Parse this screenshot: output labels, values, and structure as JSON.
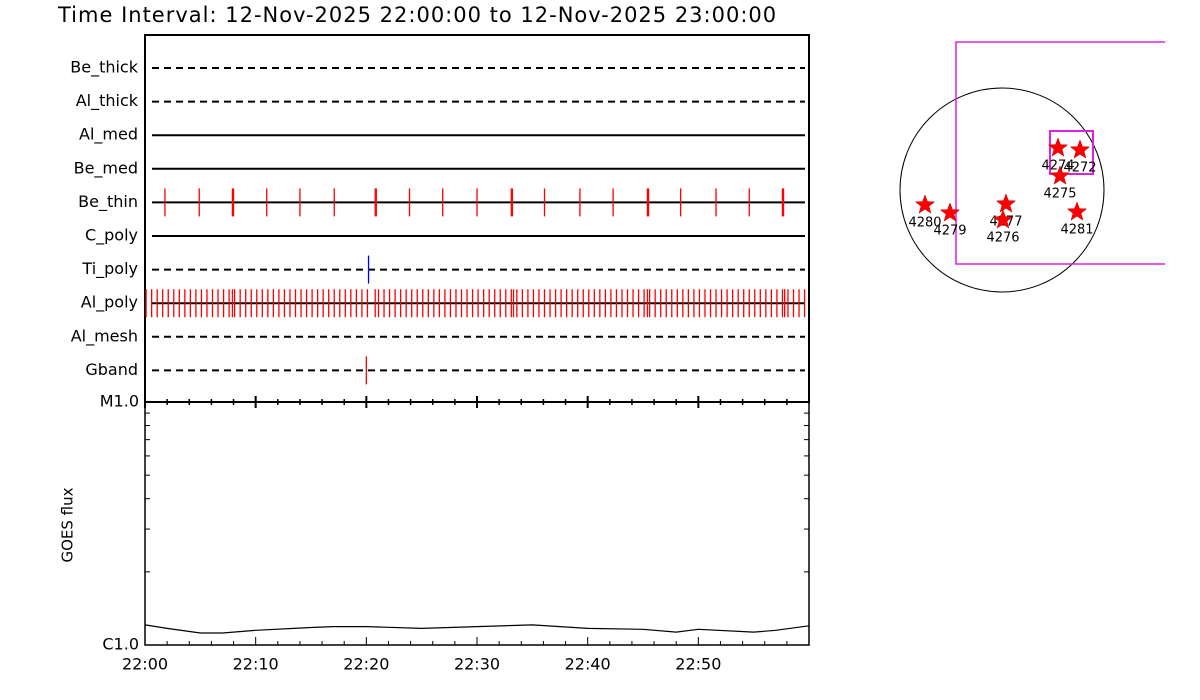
{
  "title": "Time Interval: 12-Nov-2025 22:00:00 to 12-Nov-2025 23:00:00",
  "chart_data": [
    {
      "type": "event",
      "xlim": [
        0,
        60
      ],
      "xticks": [
        0,
        10,
        20,
        30,
        40,
        50
      ],
      "minor_xticks": [
        2,
        4,
        6,
        8,
        12,
        14,
        16,
        18,
        22,
        24,
        26,
        28,
        32,
        34,
        36,
        38,
        42,
        44,
        46,
        48,
        52,
        54,
        56,
        58
      ],
      "rows": [
        {
          "name": "Be_thick",
          "line_style": "dashed",
          "color": "#ff0000",
          "events": []
        },
        {
          "name": "Al_thick",
          "line_style": "dashed",
          "color": "#ff0000",
          "events": []
        },
        {
          "name": "Al_med",
          "line_style": "solid",
          "color": "#ff0000",
          "events": []
        },
        {
          "name": "Be_med",
          "line_style": "solid",
          "color": "#ff0000",
          "events": []
        },
        {
          "name": "Be_thin",
          "line_style": "solid",
          "color": "#ff0000",
          "events": [
            1.8,
            4.9,
            7.9,
            8.0,
            11.0,
            14.0,
            17.1,
            20.8,
            20.9,
            23.9,
            26.9,
            30.0,
            33.1,
            33.2,
            36.1,
            39.3,
            42.3,
            45.4,
            45.5,
            48.4,
            51.6,
            54.6,
            57.6,
            57.7
          ]
        },
        {
          "name": "C_poly",
          "line_style": "solid",
          "color": "#ff0000",
          "events": []
        },
        {
          "name": "Ti_poly",
          "line_style": "dashed",
          "color": "#0000ff",
          "events": [
            20.2
          ]
        },
        {
          "name": "Al_poly",
          "line_style": "solid",
          "color": "#ff0000",
          "events": [
            0.1,
            0.6,
            1.1,
            1.6,
            2.1,
            2.6,
            3.1,
            3.6,
            4.1,
            4.6,
            5.1,
            5.6,
            6.1,
            6.6,
            7.1,
            7.6,
            7.9,
            8.1,
            8.6,
            9.1,
            9.6,
            10.1,
            10.6,
            11.1,
            11.6,
            12.1,
            12.6,
            13.1,
            13.6,
            14.1,
            14.6,
            15.1,
            15.6,
            16.1,
            16.6,
            17.1,
            17.6,
            18.1,
            18.6,
            19.1,
            19.6,
            20.1,
            20.8,
            21.1,
            21.6,
            22.1,
            22.6,
            23.1,
            23.6,
            24.1,
            24.6,
            25.1,
            25.6,
            26.1,
            26.6,
            27.1,
            27.6,
            28.1,
            28.6,
            29.1,
            29.6,
            30.1,
            30.6,
            31.1,
            31.6,
            32.1,
            32.6,
            33.1,
            33.3,
            33.6,
            34.1,
            34.6,
            35.1,
            35.6,
            36.1,
            36.6,
            37.1,
            37.6,
            38.1,
            38.6,
            39.1,
            39.6,
            40.1,
            40.6,
            41.1,
            41.6,
            42.1,
            42.6,
            43.1,
            43.6,
            44.1,
            44.6,
            45.1,
            45.4,
            45.6,
            46.1,
            46.6,
            47.1,
            47.6,
            48.1,
            48.6,
            49.1,
            49.6,
            50.1,
            50.6,
            51.1,
            51.6,
            52.1,
            52.6,
            53.1,
            53.6,
            54.1,
            54.6,
            55.1,
            55.6,
            56.1,
            56.6,
            57.1,
            57.6,
            57.8,
            58.1,
            58.6,
            59.1,
            59.6
          ]
        },
        {
          "name": "Al_mesh",
          "line_style": "dashed",
          "color": "#ff0000",
          "events": []
        },
        {
          "name": "Gband",
          "line_style": "dashed",
          "color": "#ff0000",
          "events": [
            20.0
          ]
        }
      ]
    },
    {
      "type": "line",
      "y_label": "GOES flux",
      "log_scale": true,
      "color": "#000000",
      "x": [
        0,
        2,
        5,
        7,
        10,
        15,
        17,
        20,
        25,
        30,
        35,
        40,
        45,
        48,
        50,
        55,
        57,
        60
      ],
      "values": [
        1.21e-06,
        1.17e-06,
        1.12e-06,
        1.12e-06,
        1.15e-06,
        1.18e-06,
        1.19e-06,
        1.19e-06,
        1.17e-06,
        1.19e-06,
        1.21e-06,
        1.17e-06,
        1.16e-06,
        1.13e-06,
        1.16e-06,
        1.13e-06,
        1.15e-06,
        1.2e-06
      ],
      "xlim": [
        0,
        60
      ],
      "xticks": [
        {
          "value": 0,
          "label": "22:00"
        },
        {
          "value": 10,
          "label": "22:10"
        },
        {
          "value": 20,
          "label": "22:20"
        },
        {
          "value": 30,
          "label": "22:30"
        },
        {
          "value": 40,
          "label": "22:40"
        },
        {
          "value": 50,
          "label": "22:50"
        }
      ],
      "minor_xticks": [
        2,
        4,
        6,
        8,
        12,
        14,
        16,
        18,
        22,
        24,
        26,
        28,
        32,
        34,
        36,
        38,
        42,
        44,
        46,
        48,
        52,
        54,
        56,
        58
      ],
      "ylim": [
        1e-06,
        1e-05
      ],
      "yticks": [
        {
          "value": 1e-05,
          "label": "M1.0"
        },
        {
          "value": 1e-06,
          "label": "C1.0"
        }
      ],
      "minor_yticks": [
        2e-06,
        3e-06,
        4e-06,
        5e-06,
        6e-06,
        7e-06,
        8e-06,
        9e-06
      ]
    }
  ],
  "map": {
    "regions": [
      {
        "label": "4274"
      },
      {
        "label": "4272"
      },
      {
        "label": "4275"
      },
      {
        "label": "4280"
      },
      {
        "label": "4279"
      },
      {
        "label": "4277"
      },
      {
        "label": "4276"
      },
      {
        "label": "4281"
      }
    ]
  }
}
